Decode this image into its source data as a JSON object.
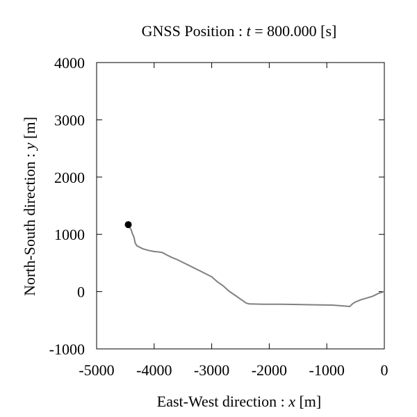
{
  "chart_data": {
    "type": "line",
    "title": "GNSS Position :",
    "title_var": "t",
    "title_rest": "= 800.000 [s]",
    "xlabel": "East-West direction :",
    "xlabel_var": "x",
    "xlabel_unit": "[m]",
    "ylabel": "North-South direction :",
    "ylabel_var": "y",
    "ylabel_unit": "[m]",
    "xlim": [
      -5000,
      0
    ],
    "ylim": [
      -1000,
      4000
    ],
    "xticks": [
      -5000,
      -4000,
      -3000,
      -2000,
      -1000,
      0
    ],
    "xtick_labels": [
      "-5000",
      "-4000",
      "-3000",
      "-2000",
      "-1000",
      "0"
    ],
    "yticks": [
      -1000,
      0,
      1000,
      2000,
      3000,
      4000
    ],
    "ytick_labels": [
      "-1000",
      "0",
      "1000",
      "2000",
      "3000",
      "4000"
    ],
    "grid": false,
    "line_color": "#808080",
    "marker_color": "#000000",
    "series": [
      {
        "x": [
          0,
          -100,
          -200,
          -300,
          -400,
          -500,
          -550,
          -600,
          -700,
          -900,
          -1200,
          -1500,
          -1800,
          -2100,
          -2350,
          -2400,
          -2500,
          -2600,
          -2700,
          -2800,
          -2900,
          -3000,
          -3100,
          -3200,
          -3300,
          -3400,
          -3500,
          -3600,
          -3700,
          -3800,
          -3850,
          -3900,
          -4000,
          -4100,
          -4200,
          -4300,
          -4330,
          -4350,
          -4380,
          -4400,
          -4430,
          -4450
        ],
        "y": [
          0,
          -30,
          -80,
          -110,
          -140,
          -180,
          -210,
          -260,
          -250,
          -235,
          -230,
          -225,
          -220,
          -220,
          -215,
          -200,
          -130,
          -60,
          10,
          100,
          170,
          260,
          310,
          360,
          410,
          460,
          510,
          560,
          600,
          650,
          680,
          690,
          700,
          720,
          750,
          800,
          850,
          950,
          1020,
          1080,
          1130,
          1170
        ]
      }
    ],
    "current_position": {
      "x": -4450,
      "y": 1170
    }
  }
}
